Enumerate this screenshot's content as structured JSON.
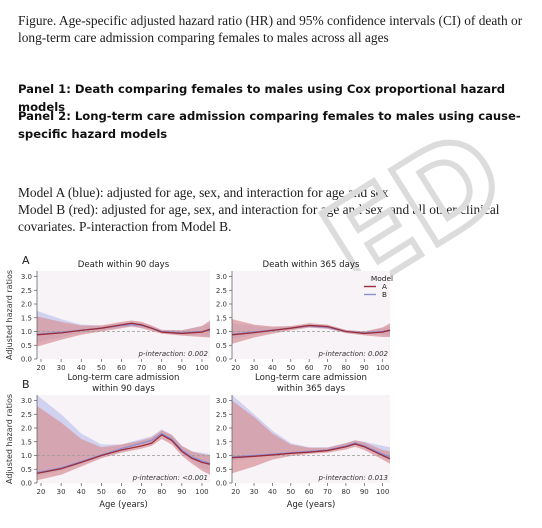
{
  "caption": "Figure. Age-specific adjusted hazard ratio (HR) and 95% confidence intervals (CI) of death or long-term care admission comparing females to males across all ages",
  "panel1": "Panel 1: Death comparing females to males using Cox proportional hazard models",
  "panel2": "Panel 2: Long-term care admission comparing females to males using cause-specific hazard models",
  "modelA": "Model A (blue): adjusted for age, sex, and interaction for age and sex",
  "modelB": "Model B (red): adjusted for age, sex, and interaction for age and sex, and all other clinical covariates. P-interaction from Model B.",
  "watermark_text": "ED",
  "colors": {
    "modelA": "#8b8fd6",
    "modelB": "#9b2d3a",
    "bandA": "#c9cbef",
    "bandB": "#d8959e",
    "reference": "#999999"
  },
  "row_letters": [
    "A",
    "B"
  ],
  "y_axis_title": "Adjusted hazard ratios",
  "x_axis_title": "Age (years)",
  "legend": {
    "title": "Model",
    "entries": [
      "A",
      "B"
    ]
  },
  "chart_data": [
    {
      "type": "line",
      "title": "Death within 90 days",
      "annotation": "p-interaction: 0.002",
      "xlabel": "",
      "ylabel": "Adjusted hazard ratios",
      "xlim": [
        18,
        104
      ],
      "ylim": [
        0,
        3.2
      ],
      "x_ticks": [
        20,
        30,
        40,
        50,
        60,
        70,
        80,
        90,
        100
      ],
      "y_ticks": [
        "0.0",
        "0.5",
        "1.0",
        "1.5",
        "2.0",
        "2.5",
        "3.0"
      ],
      "reference_line": 1.0,
      "x": [
        18,
        30,
        40,
        50,
        60,
        65,
        70,
        75,
        80,
        90,
        100,
        104
      ],
      "series": [
        {
          "name": "A",
          "values": [
            0.9,
            0.97,
            1.05,
            1.12,
            1.22,
            1.25,
            1.22,
            1.12,
            1.0,
            0.95,
            1.0,
            1.05
          ],
          "lower": [
            0.6,
            0.8,
            0.95,
            1.05,
            1.15,
            1.18,
            1.15,
            1.05,
            0.95,
            0.88,
            0.85,
            0.8
          ],
          "upper": [
            1.75,
            1.45,
            1.25,
            1.22,
            1.3,
            1.35,
            1.3,
            1.2,
            1.06,
            1.05,
            1.2,
            1.3
          ]
        },
        {
          "name": "B",
          "values": [
            0.88,
            0.95,
            1.04,
            1.12,
            1.24,
            1.3,
            1.24,
            1.12,
            0.98,
            0.93,
            0.98,
            1.08
          ],
          "lower": [
            0.45,
            0.7,
            0.88,
            1.0,
            1.12,
            1.18,
            1.12,
            1.02,
            0.92,
            0.85,
            0.8,
            0.78
          ],
          "upper": [
            1.55,
            1.35,
            1.22,
            1.22,
            1.35,
            1.4,
            1.35,
            1.22,
            1.06,
            1.04,
            1.2,
            1.4
          ]
        }
      ]
    },
    {
      "type": "line",
      "title": "Death within 365 days",
      "annotation": "p-interaction: 0.002",
      "xlabel": "",
      "ylabel": "",
      "xlim": [
        18,
        104
      ],
      "ylim": [
        0,
        3.2
      ],
      "x_ticks": [
        20,
        30,
        40,
        50,
        60,
        70,
        80,
        90,
        100
      ],
      "y_ticks": [
        "0.0",
        "0.5",
        "1.0",
        "1.5",
        "2.0",
        "2.5",
        "3.0"
      ],
      "reference_line": 1.0,
      "x": [
        18,
        30,
        40,
        50,
        60,
        70,
        80,
        90,
        100,
        104
      ],
      "series": [
        {
          "name": "A",
          "values": [
            0.9,
            0.98,
            1.05,
            1.12,
            1.2,
            1.15,
            1.0,
            0.95,
            1.0,
            1.05
          ],
          "lower": [
            0.72,
            0.88,
            0.98,
            1.08,
            1.16,
            1.1,
            0.96,
            0.9,
            0.88,
            0.85
          ],
          "upper": [
            1.3,
            1.2,
            1.15,
            1.18,
            1.25,
            1.2,
            1.05,
            1.0,
            1.12,
            1.2
          ]
        },
        {
          "name": "B",
          "values": [
            0.88,
            0.96,
            1.04,
            1.12,
            1.22,
            1.18,
            1.0,
            0.93,
            0.98,
            1.05
          ],
          "lower": [
            0.55,
            0.78,
            0.92,
            1.04,
            1.14,
            1.1,
            0.94,
            0.86,
            0.8,
            0.8
          ],
          "upper": [
            1.45,
            1.25,
            1.18,
            1.2,
            1.3,
            1.25,
            1.06,
            1.0,
            1.15,
            1.3
          ]
        }
      ]
    },
    {
      "type": "line",
      "title": "Long-term care admission\nwithin 90 days",
      "annotation": "p-interaction: <0.001",
      "xlabel": "Age (years)",
      "ylabel": "Adjusted hazard ratios",
      "xlim": [
        18,
        104
      ],
      "ylim": [
        0,
        3.2
      ],
      "x_ticks": [
        20,
        30,
        40,
        50,
        60,
        70,
        80,
        90,
        100
      ],
      "y_ticks": [
        "0.0",
        "0.5",
        "1.0",
        "1.5",
        "2.0",
        "2.5",
        "3.0"
      ],
      "reference_line": 1.0,
      "x": [
        18,
        30,
        40,
        50,
        60,
        70,
        75,
        80,
        85,
        90,
        95,
        100,
        104
      ],
      "series": [
        {
          "name": "A",
          "values": [
            0.38,
            0.55,
            0.78,
            1.02,
            1.25,
            1.45,
            1.55,
            1.8,
            1.6,
            1.2,
            0.95,
            0.8,
            0.72
          ],
          "lower": [
            0.25,
            0.45,
            0.7,
            0.96,
            1.2,
            1.4,
            1.5,
            1.75,
            1.52,
            1.1,
            0.8,
            0.55,
            0.45
          ],
          "upper": [
            3.2,
            2.5,
            1.8,
            1.4,
            1.4,
            1.6,
            1.7,
            1.95,
            1.75,
            1.35,
            1.15,
            1.1,
            1.05
          ]
        },
        {
          "name": "B",
          "values": [
            0.35,
            0.52,
            0.75,
            1.0,
            1.2,
            1.35,
            1.45,
            1.75,
            1.55,
            1.15,
            0.9,
            0.75,
            0.68
          ],
          "lower": [
            0.1,
            0.3,
            0.6,
            0.9,
            1.1,
            1.25,
            1.35,
            1.6,
            1.4,
            1.0,
            0.7,
            0.45,
            0.3
          ],
          "upper": [
            2.8,
            2.2,
            1.6,
            1.3,
            1.4,
            1.55,
            1.65,
            1.92,
            1.75,
            1.35,
            1.15,
            1.05,
            1.0
          ]
        }
      ]
    },
    {
      "type": "line",
      "title": "Long-term care admission\nwithin 365 days",
      "annotation": "p-interaction: 0.013",
      "xlabel": "Age (years)",
      "ylabel": "",
      "xlim": [
        18,
        104
      ],
      "ylim": [
        0,
        3.2
      ],
      "x_ticks": [
        20,
        30,
        40,
        50,
        60,
        70,
        80,
        90,
        100
      ],
      "y_ticks": [
        "0.0",
        "0.5",
        "1.0",
        "1.5",
        "2.0",
        "2.5",
        "3.0"
      ],
      "reference_line": 1.0,
      "x": [
        18,
        30,
        40,
        50,
        60,
        70,
        80,
        85,
        90,
        100,
        104
      ],
      "series": [
        {
          "name": "A",
          "values": [
            0.95,
            1.0,
            1.05,
            1.1,
            1.15,
            1.2,
            1.35,
            1.45,
            1.35,
            1.05,
            0.95
          ],
          "lower": [
            0.8,
            0.92,
            1.0,
            1.06,
            1.12,
            1.16,
            1.3,
            1.4,
            1.28,
            0.95,
            0.8
          ],
          "upper": [
            3.2,
            2.5,
            1.9,
            1.45,
            1.3,
            1.3,
            1.45,
            1.55,
            1.5,
            1.35,
            1.3
          ]
        },
        {
          "name": "B",
          "values": [
            0.92,
            0.97,
            1.02,
            1.08,
            1.12,
            1.18,
            1.32,
            1.42,
            1.32,
            1.0,
            0.88
          ],
          "lower": [
            0.35,
            0.6,
            0.85,
            0.98,
            1.06,
            1.1,
            1.22,
            1.32,
            1.2,
            0.85,
            0.7
          ],
          "upper": [
            3.0,
            2.4,
            1.8,
            1.4,
            1.28,
            1.28,
            1.45,
            1.55,
            1.48,
            1.2,
            1.15
          ]
        }
      ]
    }
  ]
}
